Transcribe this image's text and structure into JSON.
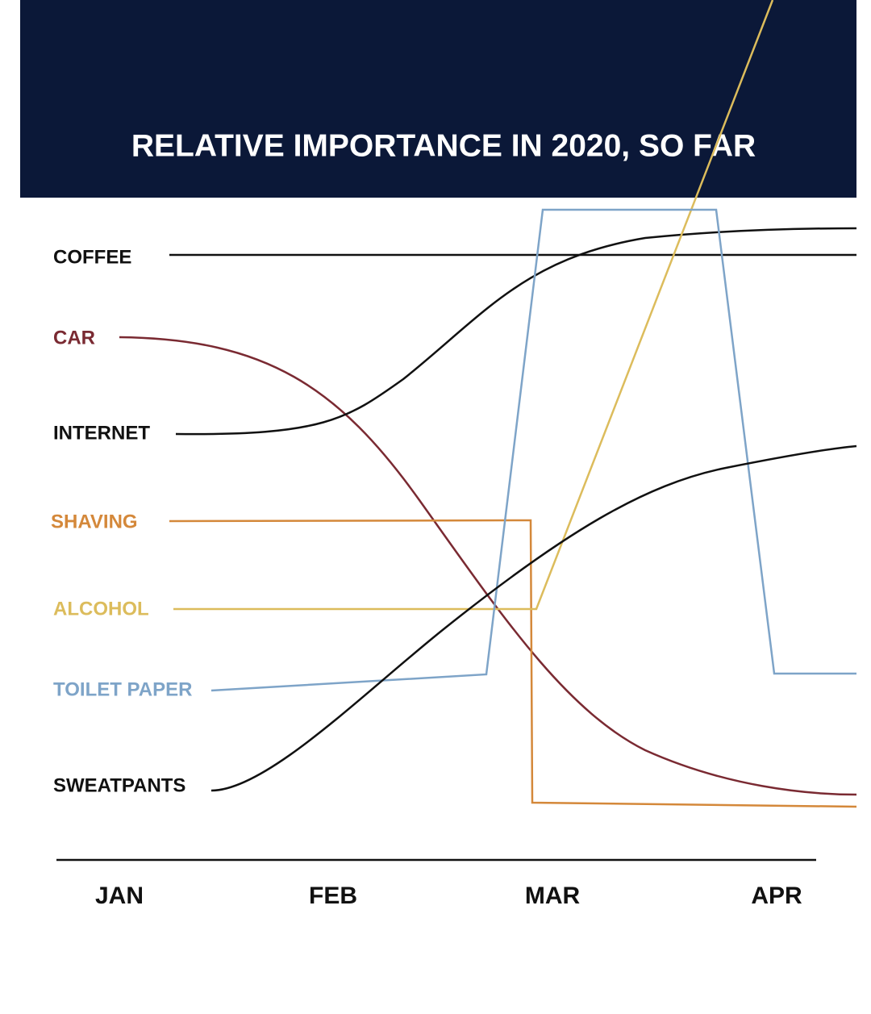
{
  "title": "RELATIVE IMPORTANCE IN 2020, SO FAR",
  "items": [
    {
      "label": "COFFEE",
      "color": "#111111"
    },
    {
      "label": "CAR",
      "color": "#7a2a32"
    },
    {
      "label": "INTERNET",
      "color": "#111111"
    },
    {
      "label": "SHAVING",
      "color": "#d4883a"
    },
    {
      "label": "ALCOHOL",
      "color": "#dcbc5c"
    },
    {
      "label": "TOILET PAPER",
      "color": "#7ea4c8"
    },
    {
      "label": "SWEATPANTS",
      "color": "#111111"
    }
  ],
  "months": [
    "JAN",
    "FEB",
    "MAR",
    "APR"
  ]
}
